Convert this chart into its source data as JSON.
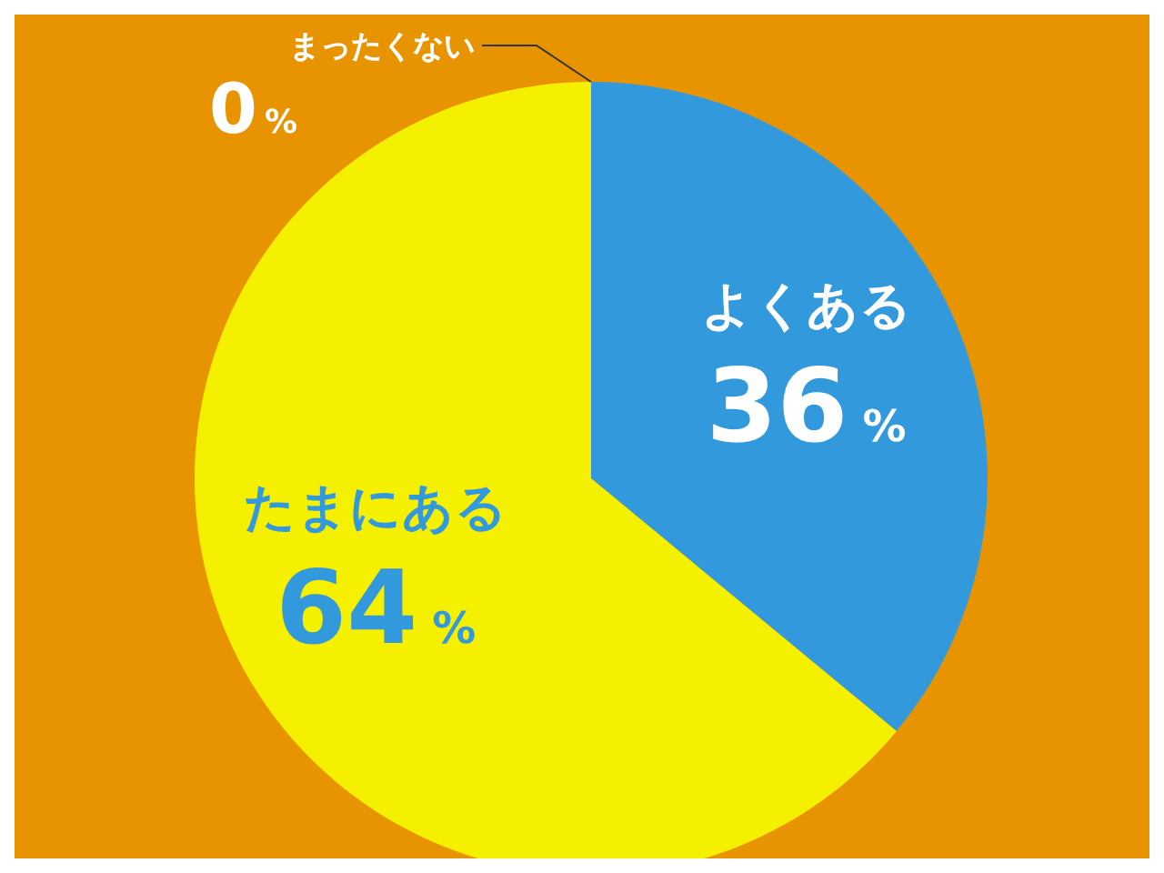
{
  "chart_data": {
    "type": "pie",
    "categories": [
      "よくある",
      "たまにある",
      "まったくない"
    ],
    "values": [
      36,
      64,
      0
    ],
    "colors": [
      "#3399dd",
      "#f5ef00",
      "#f5ef00"
    ],
    "value_labels": [
      "36%",
      "64%",
      "0%"
    ]
  }
}
